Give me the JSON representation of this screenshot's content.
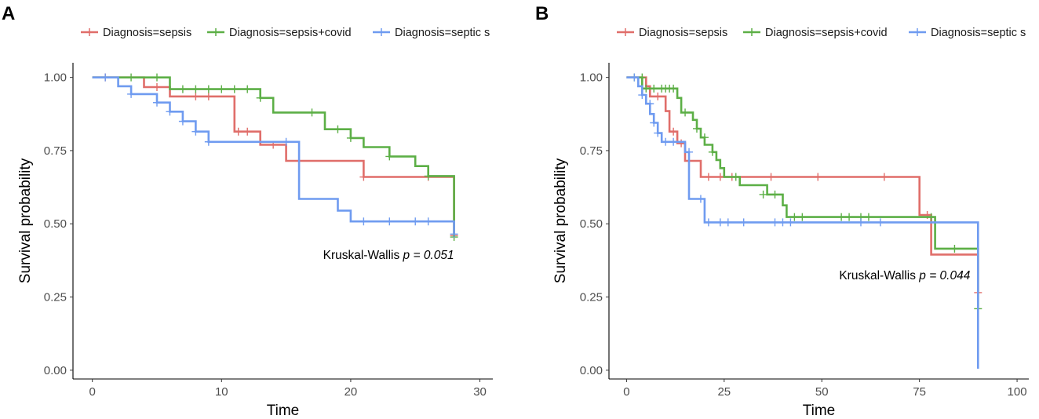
{
  "chart_data": [
    {
      "panel": "A",
      "type": "line",
      "subtype": "kaplan-meier",
      "xlabel": "Time",
      "ylabel": "Survival probability",
      "xlim": [
        -1.5,
        31
      ],
      "ylim": [
        -0.03,
        1.05
      ],
      "xticks": [
        0,
        10,
        20,
        30
      ],
      "yticks": [
        0.0,
        0.25,
        0.5,
        0.75,
        1.0
      ],
      "ytick_labels": [
        "0.00",
        "0.25",
        "0.50",
        "0.75",
        "1.00"
      ],
      "grid": false,
      "legend": [
        "Diagnosis=sepsis",
        "Diagnosis=sepsis+covid",
        "Diagnosis=septic s"
      ],
      "annotation": {
        "prefix": "Kruskal-Wallis ",
        "p_label": "p = 0.051",
        "x": 28,
        "y": 0.38
      },
      "series": [
        {
          "name": "Diagnosis=sepsis",
          "color": "#E06E6A",
          "steps": [
            [
              0,
              1.0
            ],
            [
              4,
              1.0
            ],
            [
              4,
              0.967
            ],
            [
              6,
              0.967
            ],
            [
              6,
              0.935
            ],
            [
              11,
              0.935
            ],
            [
              11,
              0.815
            ],
            [
              13,
              0.815
            ],
            [
              13,
              0.77
            ],
            [
              15,
              0.77
            ],
            [
              15,
              0.715
            ],
            [
              21,
              0.715
            ],
            [
              21,
              0.66
            ],
            [
              28,
              0.66
            ],
            [
              28,
              0.46
            ]
          ],
          "censors": [
            [
              1,
              1.0
            ],
            [
              5,
              0.967
            ],
            [
              8,
              0.935
            ],
            [
              9,
              0.935
            ],
            [
              11.3,
              0.815
            ],
            [
              12,
              0.815
            ],
            [
              14,
              0.77
            ],
            [
              21,
              0.66
            ],
            [
              26,
              0.66
            ],
            [
              28,
              0.46
            ]
          ]
        },
        {
          "name": "Diagnosis=sepsis+covid",
          "color": "#5CAF46",
          "steps": [
            [
              0,
              1.0
            ],
            [
              6,
              1.0
            ],
            [
              6,
              0.96
            ],
            [
              13,
              0.96
            ],
            [
              13,
              0.93
            ],
            [
              14,
              0.93
            ],
            [
              14,
              0.88
            ],
            [
              18,
              0.88
            ],
            [
              18,
              0.823
            ],
            [
              20,
              0.823
            ],
            [
              20,
              0.793
            ],
            [
              21,
              0.793
            ],
            [
              21,
              0.762
            ],
            [
              23,
              0.762
            ],
            [
              23,
              0.73
            ],
            [
              25,
              0.73
            ],
            [
              25,
              0.697
            ],
            [
              26,
              0.697
            ],
            [
              26,
              0.663
            ],
            [
              28,
              0.663
            ],
            [
              28,
              0.455
            ]
          ],
          "censors": [
            [
              3,
              1.0
            ],
            [
              5,
              1.0
            ],
            [
              7,
              0.96
            ],
            [
              8,
              0.96
            ],
            [
              9,
              0.96
            ],
            [
              10,
              0.96
            ],
            [
              11,
              0.96
            ],
            [
              12,
              0.96
            ],
            [
              13,
              0.93
            ],
            [
              17,
              0.88
            ],
            [
              19,
              0.823
            ],
            [
              20,
              0.793
            ],
            [
              23,
              0.73
            ],
            [
              26,
              0.663
            ],
            [
              28,
              0.455
            ]
          ]
        },
        {
          "name": "Diagnosis=septic s",
          "color": "#6F9BF0",
          "steps": [
            [
              0,
              1.0
            ],
            [
              2,
              1.0
            ],
            [
              2,
              0.97
            ],
            [
              3,
              0.97
            ],
            [
              3,
              0.943
            ],
            [
              5,
              0.943
            ],
            [
              5,
              0.914
            ],
            [
              6,
              0.914
            ],
            [
              6,
              0.883
            ],
            [
              7,
              0.883
            ],
            [
              7,
              0.85
            ],
            [
              8,
              0.85
            ],
            [
              8,
              0.815
            ],
            [
              9,
              0.815
            ],
            [
              9,
              0.78
            ],
            [
              16,
              0.78
            ],
            [
              16,
              0.585
            ],
            [
              19,
              0.585
            ],
            [
              19,
              0.545
            ],
            [
              20,
              0.545
            ],
            [
              20,
              0.508
            ],
            [
              28,
              0.508
            ],
            [
              28,
              0.465
            ]
          ],
          "censors": [
            [
              1,
              1.0
            ],
            [
              3,
              0.943
            ],
            [
              5,
              0.914
            ],
            [
              6,
              0.883
            ],
            [
              7,
              0.85
            ],
            [
              8,
              0.815
            ],
            [
              9,
              0.78
            ],
            [
              15,
              0.78
            ],
            [
              21,
              0.508
            ],
            [
              23,
              0.508
            ],
            [
              25,
              0.508
            ],
            [
              26,
              0.508
            ],
            [
              28,
              0.465
            ]
          ]
        }
      ]
    },
    {
      "panel": "B",
      "type": "line",
      "subtype": "kaplan-meier",
      "xlabel": "Time",
      "ylabel": "Survival probability",
      "xlim": [
        -4.5,
        103
      ],
      "ylim": [
        -0.03,
        1.05
      ],
      "xticks": [
        0,
        25,
        50,
        75,
        100
      ],
      "yticks": [
        0.0,
        0.25,
        0.5,
        0.75,
        1.0
      ],
      "ytick_labels": [
        "0.00",
        "0.25",
        "0.50",
        "0.75",
        "1.00"
      ],
      "grid": false,
      "legend": [
        "Diagnosis=sepsis",
        "Diagnosis=sepsis+covid",
        "Diagnosis=septic s"
      ],
      "annotation": {
        "prefix": "Kruskal-Wallis ",
        "p_label": "p = 0.044",
        "x": 88,
        "y": 0.31
      },
      "series": [
        {
          "name": "Diagnosis=sepsis",
          "color": "#E06E6A",
          "steps": [
            [
              0,
              1.0
            ],
            [
              5,
              1.0
            ],
            [
              5,
              0.97
            ],
            [
              6,
              0.97
            ],
            [
              6,
              0.935
            ],
            [
              10,
              0.935
            ],
            [
              10,
              0.885
            ],
            [
              11,
              0.885
            ],
            [
              11,
              0.815
            ],
            [
              13,
              0.815
            ],
            [
              13,
              0.775
            ],
            [
              15,
              0.775
            ],
            [
              15,
              0.715
            ],
            [
              19,
              0.715
            ],
            [
              19,
              0.66
            ],
            [
              75,
              0.66
            ],
            [
              75,
              0.53
            ],
            [
              78,
              0.53
            ],
            [
              78,
              0.395
            ],
            [
              90,
              0.395
            ],
            [
              90,
              0.265
            ]
          ],
          "censors": [
            [
              8,
              0.935
            ],
            [
              12,
              0.815
            ],
            [
              14,
              0.775
            ],
            [
              21,
              0.66
            ],
            [
              24,
              0.66
            ],
            [
              27,
              0.66
            ],
            [
              37,
              0.66
            ],
            [
              49,
              0.66
            ],
            [
              66,
              0.66
            ],
            [
              77,
              0.53
            ],
            [
              90,
              0.265
            ]
          ]
        },
        {
          "name": "Diagnosis=sepsis+covid",
          "color": "#5CAF46",
          "steps": [
            [
              0,
              1.0
            ],
            [
              4,
              1.0
            ],
            [
              4,
              0.962
            ],
            [
              13,
              0.962
            ],
            [
              13,
              0.93
            ],
            [
              14,
              0.93
            ],
            [
              14,
              0.88
            ],
            [
              17,
              0.88
            ],
            [
              17,
              0.855
            ],
            [
              18,
              0.855
            ],
            [
              18,
              0.825
            ],
            [
              19,
              0.825
            ],
            [
              19,
              0.795
            ],
            [
              20,
              0.795
            ],
            [
              20,
              0.77
            ],
            [
              22,
              0.77
            ],
            [
              22,
              0.745
            ],
            [
              23,
              0.745
            ],
            [
              23,
              0.718
            ],
            [
              24,
              0.718
            ],
            [
              24,
              0.69
            ],
            [
              25,
              0.69
            ],
            [
              25,
              0.66
            ],
            [
              29,
              0.66
            ],
            [
              29,
              0.632
            ],
            [
              36,
              0.632
            ],
            [
              36,
              0.6
            ],
            [
              40,
              0.6
            ],
            [
              40,
              0.563
            ],
            [
              41,
              0.563
            ],
            [
              41,
              0.523
            ],
            [
              79,
              0.523
            ],
            [
              79,
              0.415
            ],
            [
              90,
              0.415
            ],
            [
              90,
              0.21
            ]
          ],
          "censors": [
            [
              2,
              1.0
            ],
            [
              4,
              1.0
            ],
            [
              5,
              0.962
            ],
            [
              7,
              0.962
            ],
            [
              9,
              0.962
            ],
            [
              10,
              0.962
            ],
            [
              11,
              0.962
            ],
            [
              12,
              0.962
            ],
            [
              15,
              0.88
            ],
            [
              18,
              0.825
            ],
            [
              20,
              0.795
            ],
            [
              22,
              0.745
            ],
            [
              28,
              0.66
            ],
            [
              35,
              0.6
            ],
            [
              38,
              0.6
            ],
            [
              43,
              0.523
            ],
            [
              45,
              0.523
            ],
            [
              55,
              0.523
            ],
            [
              57,
              0.523
            ],
            [
              60,
              0.523
            ],
            [
              62,
              0.523
            ],
            [
              78,
              0.523
            ],
            [
              84,
              0.415
            ],
            [
              90,
              0.21
            ]
          ]
        },
        {
          "name": "Diagnosis=septic s",
          "color": "#6F9BF0",
          "steps": [
            [
              0,
              1.0
            ],
            [
              3,
              1.0
            ],
            [
              3,
              0.97
            ],
            [
              4,
              0.97
            ],
            [
              4,
              0.94
            ],
            [
              5,
              0.94
            ],
            [
              5,
              0.91
            ],
            [
              6,
              0.91
            ],
            [
              6,
              0.875
            ],
            [
              7,
              0.875
            ],
            [
              7,
              0.845
            ],
            [
              8,
              0.845
            ],
            [
              8,
              0.81
            ],
            [
              9,
              0.81
            ],
            [
              9,
              0.78
            ],
            [
              15,
              0.78
            ],
            [
              15,
              0.745
            ],
            [
              16,
              0.745
            ],
            [
              16,
              0.585
            ],
            [
              20,
              0.585
            ],
            [
              20,
              0.505
            ],
            [
              90,
              0.505
            ],
            [
              90,
              0.005
            ]
          ],
          "censors": [
            [
              2,
              1.0
            ],
            [
              4,
              0.94
            ],
            [
              6,
              0.91
            ],
            [
              7,
              0.845
            ],
            [
              8,
              0.81
            ],
            [
              10,
              0.78
            ],
            [
              12,
              0.78
            ],
            [
              16,
              0.745
            ],
            [
              19,
              0.585
            ],
            [
              21,
              0.505
            ],
            [
              24,
              0.505
            ],
            [
              26,
              0.505
            ],
            [
              30,
              0.505
            ],
            [
              38,
              0.505
            ],
            [
              40,
              0.505
            ],
            [
              42,
              0.505
            ],
            [
              60,
              0.505
            ],
            [
              65,
              0.505
            ]
          ]
        }
      ]
    }
  ]
}
